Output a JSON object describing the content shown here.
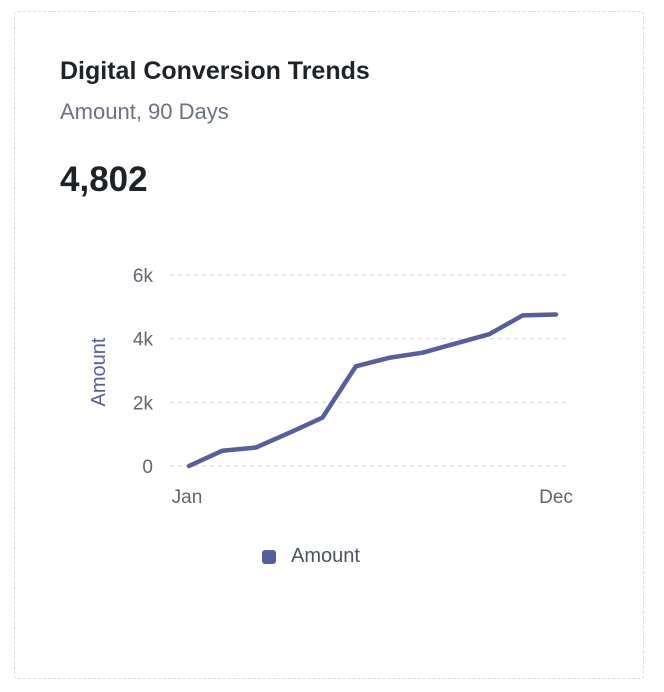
{
  "card": {
    "title": "Digital Conversion Trends",
    "subtitle": "Amount, 90 Days",
    "kpi_value": "4,802"
  },
  "chart_data": {
    "type": "line",
    "x_tick_labels": [
      "Jan",
      "Dec"
    ],
    "y_ticks": [
      0,
      2000,
      4000,
      6000
    ],
    "y_tick_labels": [
      "0",
      "2k",
      "4k",
      "6k"
    ],
    "ylim": [
      0,
      6000
    ],
    "ylabel": "Amount",
    "xlabel": "",
    "grid": "horizontal dashed",
    "legend_position": "bottom",
    "series_color": "#575f99",
    "x": [
      0,
      1,
      2,
      3,
      4,
      5,
      6,
      7,
      8,
      9,
      10,
      11
    ],
    "series": [
      {
        "name": "Amount",
        "values": [
          0,
          480,
          580,
          1040,
          1520,
          3130,
          3400,
          3560,
          3850,
          4140,
          4730,
          4760
        ]
      }
    ]
  }
}
